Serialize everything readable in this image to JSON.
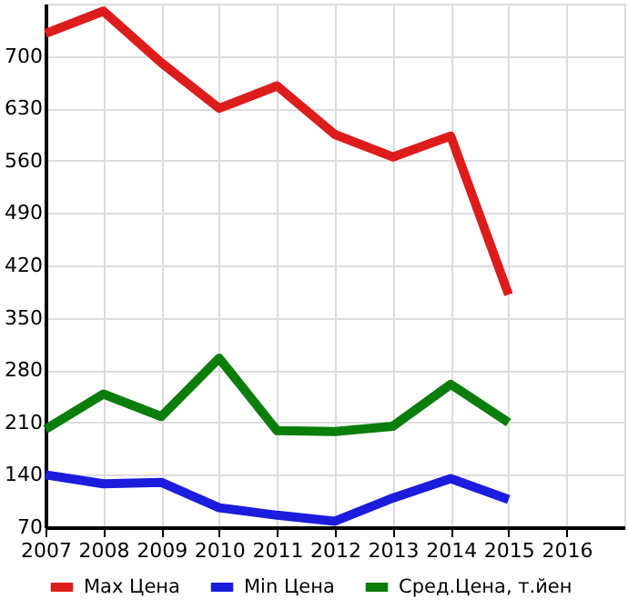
{
  "chart_data": {
    "type": "line",
    "x": [
      2007,
      2008,
      2009,
      2010,
      2011,
      2012,
      2013,
      2014,
      2015
    ],
    "series": [
      {
        "name": "Max Цена",
        "color": "#dd1c1c",
        "values": [
          730,
          760,
          691,
          630,
          660,
          595,
          565,
          593,
          381
        ]
      },
      {
        "name": "Min Цена",
        "color": "#1c1cdd",
        "values": [
          140,
          128,
          130,
          96,
          86,
          78,
          109,
          135,
          107
        ]
      },
      {
        "name": "Сред.Цена, т.йен",
        "color": "#0b7d0b",
        "values": [
          201,
          248,
          218,
          296,
          199,
          198,
          205,
          261,
          210
        ]
      }
    ],
    "xlim": [
      2007,
      2017
    ],
    "xticks": [
      2007,
      2008,
      2009,
      2010,
      2011,
      2012,
      2013,
      2014,
      2015,
      2016
    ],
    "ylim": [
      70,
      770
    ],
    "yticks": [
      70,
      140,
      210,
      280,
      350,
      420,
      490,
      560,
      630,
      700
    ],
    "grid": true,
    "legend": "bottom",
    "marker": "none",
    "line_style": "solid"
  }
}
